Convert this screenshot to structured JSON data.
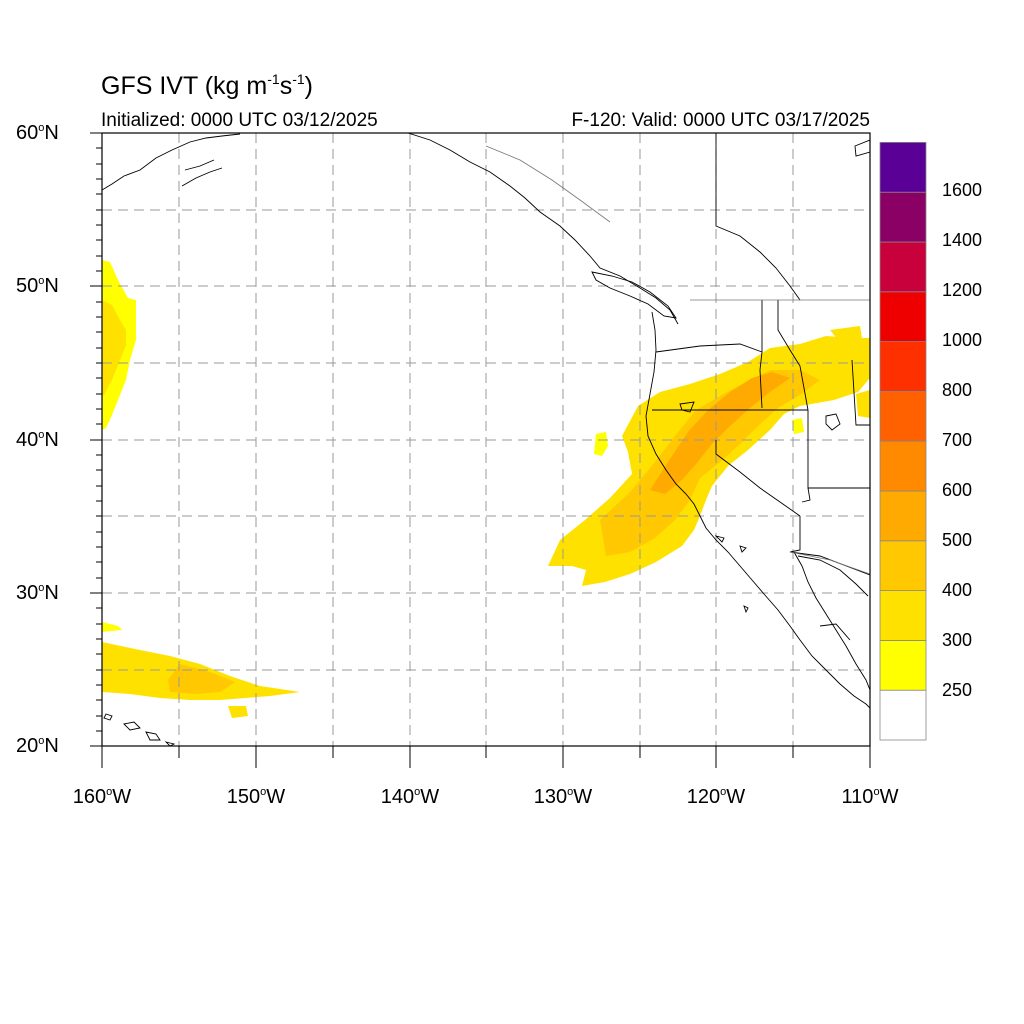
{
  "map": {
    "title_main": "GFS IVT (kg m",
    "title_sup1": "-1",
    "title_mid": "s",
    "title_sup2": "-1",
    "title_end": ")",
    "initialized": "Initialized: 0000 UTC 03/12/2025",
    "valid": "F-120: Valid: 0000 UTC 03/17/2025",
    "lat_labels": [
      {
        "deg": "60",
        "hem": "N"
      },
      {
        "deg": "50",
        "hem": "N"
      },
      {
        "deg": "40",
        "hem": "N"
      },
      {
        "deg": "30",
        "hem": "N"
      },
      {
        "deg": "20",
        "hem": "N"
      }
    ],
    "lon_labels": [
      {
        "deg": "160",
        "hem": "W"
      },
      {
        "deg": "150",
        "hem": "W"
      },
      {
        "deg": "140",
        "hem": "W"
      },
      {
        "deg": "130",
        "hem": "W"
      },
      {
        "deg": "120",
        "hem": "W"
      },
      {
        "deg": "110",
        "hem": "W"
      }
    ],
    "extent": {
      "lon_min": -160,
      "lon_max": -110,
      "lat_min": 20,
      "lat_max": 60
    },
    "grid": "dashed every 5 degrees"
  },
  "colorbar": {
    "labels": [
      "1600",
      "1400",
      "1200",
      "1000",
      "800",
      "700",
      "600",
      "500",
      "400",
      "300",
      "250"
    ],
    "colors": [
      "#ffffff",
      "#ffff00",
      "#ffe100",
      "#ffc800",
      "#ffaa00",
      "#ff8a00",
      "#ff6000",
      "#ff3000",
      "#ee0000",
      "#c8003c",
      "#8b0064",
      "#5a0096"
    ]
  }
}
